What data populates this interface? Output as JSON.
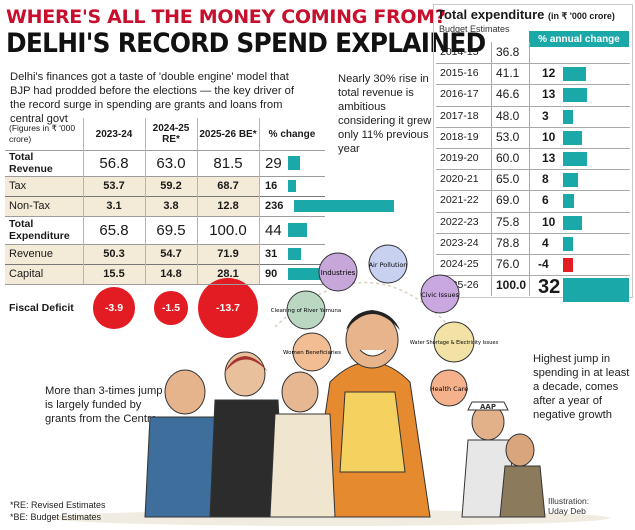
{
  "header": {
    "kicker": "WHERE'S ALL THE MONEY COMING FROM?",
    "title": "DELHI'S RECORD SPEND EXPLAINED"
  },
  "intro": "Delhi's finances got a taste of 'double engine' model that BJP had prodded before the elections — the key driver of the record surge in spending are grants and loans from central govt",
  "callouts": {
    "revenue_note": "Nearly 30% rise in total revenue is ambitious considering it grew only 11% previous year",
    "grants_note": "More than 3-times jump is largely funded by grants from the Centre",
    "spending_note": "Highest jump in spending in at least a decade, comes after a year of negative growth"
  },
  "chart_data": [
    {
      "type": "table",
      "header": {
        "label": "(Figures in ₹ '000 crore)",
        "col1": "2023-24",
        "col2": "2024-25 RE*",
        "col3": "2025-26 BE*",
        "col4": "% change"
      },
      "rows": [
        {
          "label": "Total Revenue",
          "bold": true,
          "v1": "56.8",
          "v2": "63.0",
          "v3": "81.5",
          "pct": 29
        },
        {
          "label": "Tax",
          "bold": false,
          "v1": "53.7",
          "v2": "59.2",
          "v3": "68.7",
          "pct": 16
        },
        {
          "label": "Non-Tax",
          "bold": false,
          "v1": "3.1",
          "v2": "3.8",
          "v3": "12.8",
          "pct": 236
        },
        {
          "label": "Total Expenditure",
          "bold": true,
          "v1": "65.8",
          "v2": "69.5",
          "v3": "100.0",
          "pct": 44
        },
        {
          "label": "Revenue",
          "bold": false,
          "v1": "50.3",
          "v2": "54.7",
          "v3": "71.9",
          "pct": 31
        },
        {
          "label": "Capital",
          "bold": false,
          "v1": "15.5",
          "v2": "14.8",
          "v3": "28.1",
          "pct": 90
        }
      ],
      "deficit": {
        "label": "Fiscal Deficit",
        "v1": -3.9,
        "v2": -1.5,
        "v3": -13.7
      },
      "bar_color": "#1ba8a8",
      "deficit_color": "#e31b23"
    },
    {
      "type": "bar",
      "title": "Total expenditure",
      "title_unit": "(in ₹ '000 crore)",
      "subtitle": "Budget Estimates",
      "column_header": "% annual change",
      "categories": [
        "2014-15",
        "2015-16",
        "2016-17",
        "2017-18",
        "2018-19",
        "2019-20",
        "2020-21",
        "2021-22",
        "2022-23",
        "2023-24",
        "2024-25",
        "2025-26"
      ],
      "expenditure": [
        "36.8",
        "41.1",
        "46.6",
        "48.0",
        "53.0",
        "60.0",
        "65.0",
        "69.0",
        "75.8",
        "78.8",
        "76.0",
        "100.0"
      ],
      "pct_change": [
        null,
        12,
        13,
        3,
        10,
        13,
        8,
        6,
        10,
        4,
        -4,
        32
      ],
      "positive_color": "#1ba8a8",
      "negative_color": "#e31b23"
    }
  ],
  "footnotes": {
    "re": "*RE: Revised Estimates",
    "be": "*BE: Budget Estimates"
  },
  "illustration_credit": {
    "line1": "Illustration:",
    "line2": "Uday Deb"
  },
  "bubbles": [
    "Industries",
    "Air Pollution",
    "Cleaning of River Yamuna",
    "Civic Issues",
    "Women Beneficiaries",
    "Water Shortage & Electricity Issues",
    "Health Care"
  ],
  "party_label": "AAP"
}
